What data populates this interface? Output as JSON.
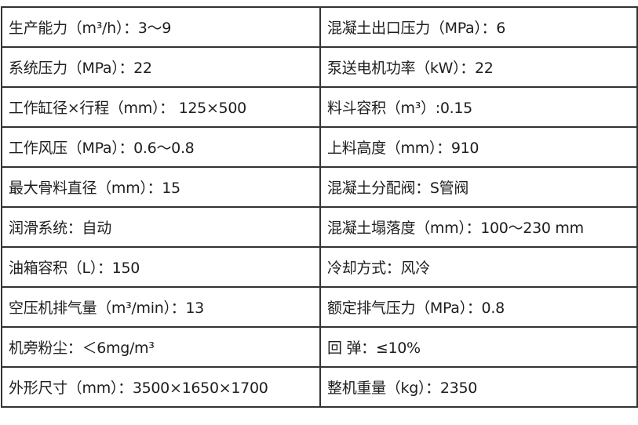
{
  "rows": [
    [
      "生产能力（m³/h）：3～9",
      "混凝土出口压力（MPa）：6"
    ],
    [
      "系统压力（MPa）：22",
      "泵送电机功率（kW）：22"
    ],
    [
      "工作缸径×行程（mm）： 125×500",
      "料斗容积（m³）:0.15"
    ],
    [
      "工作风压（MPa）：0.6～0.8",
      "上料高度（mm）：910"
    ],
    [
      "最大骨料直径（mm）：15",
      "混凝土分配阀：S管阀"
    ],
    [
      "润滑系统：自动",
      "混凝土塌落度（mm）：100～230 mm"
    ],
    [
      "油箱容积（L）：150",
      "冷却方式：风冷"
    ],
    [
      "空压机排气量（m³/min）：13",
      "额定排气压力（MPa）：0.8"
    ],
    [
      "机旁粉尘：＜6mg/m³",
      "回 弹：≤10%"
    ],
    [
      "外形尺寸（mm）：3500×1650×1700",
      "整机重量（kg）：2350"
    ]
  ]
}
